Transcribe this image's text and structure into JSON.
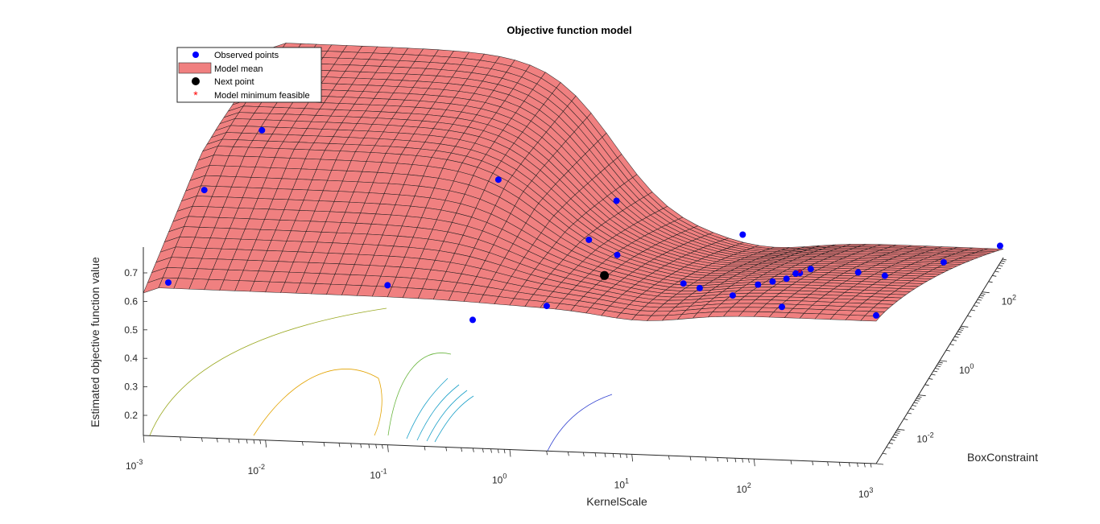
{
  "chart_data": {
    "type": "surface",
    "title": "Objective function model",
    "xlabel": "KernelScale",
    "ylabel": "BoxConstraint",
    "zlabel": "Estimated objective function value",
    "x_scale": "log",
    "y_scale": "log",
    "xlim": [
      0.001,
      1000
    ],
    "ylim": [
      0.001,
      1000
    ],
    "zlim": [
      0.1,
      0.8
    ],
    "x_ticks": [
      {
        "base": "10",
        "exp": "-3"
      },
      {
        "base": "10",
        "exp": "-2"
      },
      {
        "base": "10",
        "exp": "-1"
      },
      {
        "base": "10",
        "exp": "0"
      },
      {
        "base": "10",
        "exp": "1"
      },
      {
        "base": "10",
        "exp": "2"
      },
      {
        "base": "10",
        "exp": "3"
      }
    ],
    "y_ticks": [
      {
        "base": "10",
        "exp": "-2"
      },
      {
        "base": "10",
        "exp": "0"
      },
      {
        "base": "10",
        "exp": "2"
      }
    ],
    "z_ticks": [
      "0.2",
      "0.3",
      "0.4",
      "0.5",
      "0.6",
      "0.7"
    ],
    "z_tick_values": [
      0.2,
      0.3,
      0.4,
      0.5,
      0.6,
      0.7
    ],
    "surface_color": "#f08080",
    "observed_color": "#0000ff",
    "next_point_color": "#000000",
    "model_min_color": "#ff0000",
    "legend_position": "top-left",
    "legend": [
      {
        "label": "Observed points",
        "marker": "dot-blue"
      },
      {
        "label": "Model mean",
        "marker": "patch-salmon"
      },
      {
        "label": "Next point",
        "marker": "dot-black"
      },
      {
        "label": "Model minimum feasible",
        "marker": "asterisk-red"
      }
    ],
    "observed_points": [
      {
        "x": 0.0016,
        "y": 0.001,
        "z": 0.64
      },
      {
        "x": 0.0016,
        "y": 0.05,
        "z": 0.76
      },
      {
        "x": 0.0025,
        "y": 2,
        "z": 0.78
      },
      {
        "x": 0.1,
        "y": 0.001,
        "z": 0.66
      },
      {
        "x": 0.3,
        "y": 0.3,
        "z": 0.74
      },
      {
        "x": 0.15,
        "y": 1,
        "z": 0.18
      },
      {
        "x": 0.5,
        "y": 3,
        "z": 0.18
      },
      {
        "x": 2,
        "y": 0.1,
        "z": 0.6
      },
      {
        "x": 2,
        "y": 2,
        "z": 0.58
      },
      {
        "x": 4,
        "y": 0.04,
        "z": 0.6
      },
      {
        "x": 6,
        "y": 30,
        "z": 0.14
      },
      {
        "x": 12,
        "y": 20,
        "z": 0.14
      },
      {
        "x": 18,
        "y": 30,
        "z": 0.16
      },
      {
        "x": 20,
        "y": 80,
        "z": 0.12
      },
      {
        "x": 25,
        "y": 100,
        "z": 0.12
      },
      {
        "x": 30,
        "y": 150,
        "z": 0.12
      },
      {
        "x": 35,
        "y": 200,
        "z": 0.12
      },
      {
        "x": 30,
        "y": 0.3,
        "z": 0.58
      },
      {
        "x": 50,
        "y": 5,
        "z": 0.3
      },
      {
        "x": 20,
        "y": 0.005,
        "z": 0.62
      },
      {
        "x": 90,
        "y": 150,
        "z": 0.13
      },
      {
        "x": 150,
        "y": 0.002,
        "z": 0.6
      },
      {
        "x": 400,
        "y": 300,
        "z": 0.14
      },
      {
        "x": 700,
        "y": 0.02,
        "z": 0.6
      },
      {
        "x": 1000,
        "y": 0.001,
        "z": 0.62
      },
      {
        "x": 1000,
        "y": 700,
        "z": 0.16
      }
    ],
    "next_point": {
      "x": 4,
      "y": 0.01,
      "z": 0.6
    },
    "model_minimum_feasible": {
      "x": 30,
      "y": 150,
      "z": 0.12
    }
  }
}
